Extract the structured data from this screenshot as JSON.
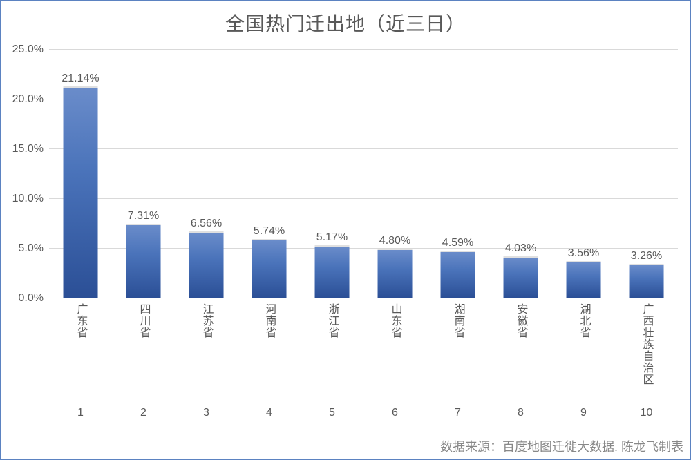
{
  "chart": {
    "type": "bar",
    "title": "全国热门迁出地（近三日）",
    "categories": [
      "广东省",
      "四川省",
      "江苏省",
      "河南省",
      "浙江省",
      "山东省",
      "湖南省",
      "安徽省",
      "湖北省",
      "广西壮族自治区"
    ],
    "indices": [
      "1",
      "2",
      "3",
      "4",
      "5",
      "6",
      "7",
      "8",
      "9",
      "10"
    ],
    "values": [
      21.14,
      7.31,
      6.56,
      5.74,
      5.17,
      4.8,
      4.59,
      4.03,
      3.56,
      3.26
    ],
    "value_labels": [
      "21.14%",
      "7.31%",
      "6.56%",
      "5.74%",
      "5.17%",
      "4.80%",
      "4.59%",
      "4.03%",
      "3.56%",
      "3.26%"
    ],
    "y_ticks": [
      0.0,
      5.0,
      10.0,
      15.0,
      20.0,
      25.0
    ],
    "y_tick_labels": [
      "0.0%",
      "5.0%",
      "10.0%",
      "15.0%",
      "20.0%",
      "25.0%"
    ],
    "ylim": [
      0,
      25
    ],
    "bar_gradient": [
      "#6a8cca",
      "#4a73ba",
      "#2b4f96"
    ],
    "grid_color": "#d9d9d9",
    "text_color": "#595959",
    "border_color": "#5b82c1",
    "title_fontsize": 28,
    "label_fontsize": 16,
    "bar_width_ratio": 0.56,
    "source": "数据来源：百度地图迁徙大数据. 陈龙飞制表"
  }
}
